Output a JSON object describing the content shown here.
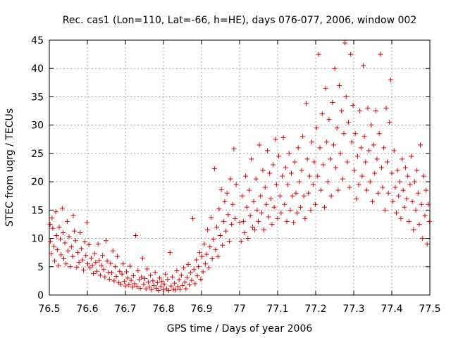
{
  "chart_data": {
    "type": "scatter",
    "title": "Rec. cas1 (Lon=110, Lat=-66, h=HE), days 076-077, 2006, window 002",
    "xlabel": "GPS time / Days of year 2006",
    "ylabel": "STEC from uqrg / TECUs",
    "xlim": [
      76.5,
      77.5
    ],
    "ylim": [
      0,
      45
    ],
    "x_ticks": [
      "76.5",
      "76.6",
      "76.7",
      "76.8",
      "76.9",
      "77",
      "77.1",
      "77.2",
      "77.3",
      "77.4",
      "77.5"
    ],
    "y_ticks": [
      "0",
      "5",
      "10",
      "15",
      "20",
      "25",
      "30",
      "35",
      "40",
      "45"
    ],
    "grid": true,
    "marker": "plus",
    "color": "#dd0000",
    "points": [
      [
        76.502,
        12.5
      ],
      [
        76.503,
        9.5
      ],
      [
        76.505,
        7.3
      ],
      [
        76.507,
        13.6
      ],
      [
        76.509,
        11.8
      ],
      [
        76.512,
        8.6
      ],
      [
        76.514,
        6.0
      ],
      [
        76.517,
        14.7
      ],
      [
        76.519,
        10.5
      ],
      [
        76.521,
        8.0
      ],
      [
        76.524,
        5.2
      ],
      [
        76.526,
        12.0
      ],
      [
        76.529,
        9.9
      ],
      [
        76.531,
        7.1
      ],
      [
        76.534,
        15.3
      ],
      [
        76.536,
        11.0
      ],
      [
        76.538,
        6.4
      ],
      [
        76.541,
        9.2
      ],
      [
        76.544,
        5.5
      ],
      [
        76.547,
        13.0
      ],
      [
        76.549,
        7.8
      ],
      [
        76.552,
        10.3
      ],
      [
        76.555,
        5.0
      ],
      [
        76.558,
        8.5
      ],
      [
        76.561,
        6.8
      ],
      [
        76.563,
        14.0
      ],
      [
        76.566,
        11.3
      ],
      [
        76.569,
        9.6
      ],
      [
        76.572,
        4.9
      ],
      [
        76.575,
        7.5
      ],
      [
        76.578,
        5.8
      ],
      [
        76.581,
        11.0
      ],
      [
        76.584,
        8.2
      ],
      [
        76.587,
        6.2
      ],
      [
        76.59,
        4.4
      ],
      [
        76.593,
        9.4
      ],
      [
        76.596,
        7.0
      ],
      [
        76.599,
        12.8
      ],
      [
        76.601,
        5.5
      ],
      [
        76.604,
        8.9
      ],
      [
        76.607,
        4.8
      ],
      [
        76.61,
        6.5
      ],
      [
        76.613,
        5.2
      ],
      [
        76.616,
        3.8
      ],
      [
        76.619,
        7.3
      ],
      [
        76.622,
        5.8
      ],
      [
        76.625,
        4.2
      ],
      [
        76.628,
        9.0
      ],
      [
        76.631,
        6.1
      ],
      [
        76.634,
        3.5
      ],
      [
        76.637,
        5.2
      ],
      [
        76.64,
        7.0
      ],
      [
        76.643,
        4.5
      ],
      [
        76.646,
        3.2
      ],
      [
        76.649,
        9.6
      ],
      [
        76.652,
        6.0
      ],
      [
        76.655,
        4.0
      ],
      [
        76.658,
        2.8
      ],
      [
        76.661,
        5.6
      ],
      [
        76.664,
        3.9
      ],
      [
        76.667,
        7.8
      ],
      [
        76.67,
        2.5
      ],
      [
        76.673,
        5.0
      ],
      [
        76.676,
        3.3
      ],
      [
        76.679,
        6.8
      ],
      [
        76.682,
        2.2
      ],
      [
        76.685,
        4.2
      ],
      [
        76.688,
        1.9
      ],
      [
        76.691,
        3.7
      ],
      [
        76.694,
        5.5
      ],
      [
        76.697,
        2.4
      ],
      [
        76.7,
        1.6
      ],
      [
        76.703,
        4.1
      ],
      [
        76.706,
        3.0
      ],
      [
        76.709,
        1.8
      ],
      [
        76.712,
        5.1
      ],
      [
        76.715,
        2.6
      ],
      [
        76.718,
        1.4
      ],
      [
        76.721,
        3.4
      ],
      [
        76.724,
        2.0
      ],
      [
        76.727,
        10.5
      ],
      [
        76.73,
        1.5
      ],
      [
        76.733,
        4.3
      ],
      [
        76.736,
        2.7
      ],
      [
        76.739,
        1.2
      ],
      [
        76.742,
        3.2
      ],
      [
        76.745,
        6.5
      ],
      [
        76.748,
        1.9
      ],
      [
        76.751,
        2.9
      ],
      [
        76.754,
        1.1
      ],
      [
        76.757,
        4.6
      ],
      [
        76.76,
        2.3
      ],
      [
        76.763,
        1.4
      ],
      [
        76.766,
        3.5
      ],
      [
        76.769,
        0.9
      ],
      [
        76.772,
        2.5
      ],
      [
        76.775,
        1.7
      ],
      [
        76.778,
        4.0
      ],
      [
        76.781,
        1.2
      ],
      [
        76.784,
        2.2
      ],
      [
        76.787,
        0.8
      ],
      [
        76.79,
        3.0
      ],
      [
        76.793,
        1.5
      ],
      [
        76.796,
        2.4
      ],
      [
        76.799,
        0.9
      ],
      [
        76.802,
        1.9
      ],
      [
        76.805,
        3.7
      ],
      [
        76.808,
        1.1
      ],
      [
        76.811,
        2.8
      ],
      [
        76.814,
        0.8
      ],
      [
        76.817,
        7.5
      ],
      [
        76.82,
        1.6
      ],
      [
        76.823,
        3.2
      ],
      [
        76.826,
        1.0
      ],
      [
        76.829,
        2.1
      ],
      [
        76.832,
        0.9
      ],
      [
        76.835,
        4.3
      ],
      [
        76.838,
        1.5
      ],
      [
        76.841,
        2.7
      ],
      [
        76.844,
        1.0
      ],
      [
        76.847,
        3.5
      ],
      [
        76.85,
        1.7
      ],
      [
        76.853,
        4.8
      ],
      [
        76.856,
        2.3
      ],
      [
        76.859,
        1.1
      ],
      [
        76.862,
        3.1
      ],
      [
        76.865,
        5.4
      ],
      [
        76.868,
        1.8
      ],
      [
        76.871,
        3.9
      ],
      [
        76.874,
        2.6
      ],
      [
        76.877,
        13.5
      ],
      [
        76.88,
        4.5
      ],
      [
        76.883,
        2.0
      ],
      [
        76.886,
        6.2
      ],
      [
        76.889,
        3.4
      ],
      [
        76.892,
        5.0
      ],
      [
        76.895,
        7.5
      ],
      [
        76.898,
        2.8
      ],
      [
        76.901,
        6.8
      ],
      [
        76.904,
        4.1
      ],
      [
        76.907,
        9.0
      ],
      [
        76.91,
        5.5
      ],
      [
        76.913,
        7.2
      ],
      [
        76.916,
        11.5
      ],
      [
        76.919,
        4.8
      ],
      [
        76.922,
        8.5
      ],
      [
        76.925,
        13.7
      ],
      [
        76.928,
        6.4
      ],
      [
        76.931,
        9.8
      ],
      [
        76.934,
        22.3
      ],
      [
        76.937,
        8.0
      ],
      [
        76.94,
        12.0
      ],
      [
        76.943,
        6.8
      ],
      [
        76.946,
        15.2
      ],
      [
        76.949,
        10.5
      ],
      [
        76.952,
        18.6
      ],
      [
        76.955,
        8.8
      ],
      [
        76.958,
        13.0
      ],
      [
        76.961,
        16.5
      ],
      [
        76.964,
        11.3
      ],
      [
        76.967,
        18.0
      ],
      [
        76.97,
        14.2
      ],
      [
        76.973,
        9.5
      ],
      [
        76.976,
        20.5
      ],
      [
        76.979,
        12.5
      ],
      [
        76.982,
        16.0
      ],
      [
        76.985,
        25.8
      ],
      [
        76.988,
        13.5
      ],
      [
        76.991,
        19.5
      ],
      [
        77.0,
        12.8
      ],
      [
        77.004,
        9.5
      ],
      [
        77.007,
        17.5
      ],
      [
        77.01,
        13.0
      ],
      [
        77.013,
        11.0
      ],
      [
        77.016,
        21.0
      ],
      [
        77.019,
        15.5
      ],
      [
        77.022,
        10.0
      ],
      [
        77.025,
        18.5
      ],
      [
        77.028,
        14.0
      ],
      [
        77.031,
        24.0
      ],
      [
        77.034,
        12.0
      ],
      [
        77.037,
        16.5
      ],
      [
        77.04,
        11.5
      ],
      [
        77.043,
        20.5
      ],
      [
        77.046,
        15.0
      ],
      [
        77.049,
        13.0
      ],
      [
        77.052,
        26.5
      ],
      [
        77.055,
        17.5
      ],
      [
        77.058,
        14.5
      ],
      [
        77.061,
        22.0
      ],
      [
        77.064,
        11.5
      ],
      [
        77.067,
        19.0
      ],
      [
        77.07,
        16.0
      ],
      [
        77.073,
        25.5
      ],
      [
        77.076,
        13.8
      ],
      [
        77.079,
        21.5
      ],
      [
        77.082,
        17.0
      ],
      [
        77.085,
        12.5
      ],
      [
        77.088,
        23.0
      ],
      [
        77.091,
        15.5
      ],
      [
        77.094,
        27.5
      ],
      [
        77.097,
        19.5
      ],
      [
        77.1,
        13.5
      ],
      [
        77.103,
        24.5
      ],
      [
        77.106,
        17.5
      ],
      [
        77.109,
        14.5
      ],
      [
        77.112,
        21.0
      ],
      [
        77.115,
        27.8
      ],
      [
        77.118,
        16.0
      ],
      [
        77.121,
        22.5
      ],
      [
        77.124,
        13.0
      ],
      [
        77.127,
        19.5
      ],
      [
        77.13,
        25.0
      ],
      [
        77.133,
        15.0
      ],
      [
        77.136,
        21.5
      ],
      [
        77.139,
        17.5
      ],
      [
        77.142,
        12.8
      ],
      [
        77.145,
        23.5
      ],
      [
        77.148,
        18.0
      ],
      [
        77.151,
        14.5
      ],
      [
        77.154,
        26.0
      ],
      [
        77.157,
        20.0
      ],
      [
        77.16,
        15.5
      ],
      [
        77.163,
        22.0
      ],
      [
        77.166,
        28.0
      ],
      [
        77.169,
        17.5
      ],
      [
        77.172,
        13.5
      ],
      [
        77.175,
        33.8
      ],
      [
        77.178,
        24.0
      ],
      [
        77.181,
        18.0
      ],
      [
        77.184,
        21.0
      ],
      [
        77.187,
        15.0
      ],
      [
        77.19,
        27.0
      ],
      [
        77.193,
        19.5
      ],
      [
        77.196,
        23.5
      ],
      [
        77.199,
        16.0
      ],
      [
        77.202,
        29.5
      ],
      [
        77.205,
        21.0
      ],
      [
        77.208,
        42.5
      ],
      [
        77.211,
        26.0
      ],
      [
        77.214,
        18.5
      ],
      [
        77.217,
        32.0
      ],
      [
        77.22,
        23.0
      ],
      [
        77.223,
        15.5
      ],
      [
        77.226,
        36.5
      ],
      [
        77.229,
        27.0
      ],
      [
        77.232,
        20.0
      ],
      [
        77.235,
        31.0
      ],
      [
        77.238,
        24.0
      ],
      [
        77.241,
        17.5
      ],
      [
        77.244,
        34.0
      ],
      [
        77.247,
        26.5
      ],
      [
        77.25,
        40.0
      ],
      [
        77.253,
        22.5
      ],
      [
        77.256,
        29.5
      ],
      [
        77.259,
        18.5
      ],
      [
        77.262,
        37.0
      ],
      [
        77.265,
        25.0
      ],
      [
        77.268,
        32.5
      ],
      [
        77.271,
        20.5
      ],
      [
        77.274,
        28.5
      ],
      [
        77.277,
        44.5
      ],
      [
        77.28,
        35.0
      ],
      [
        77.283,
        23.5
      ],
      [
        77.286,
        30.5
      ],
      [
        77.289,
        19.0
      ],
      [
        77.292,
        42.5
      ],
      [
        77.295,
        27.0
      ],
      [
        77.298,
        33.5
      ],
      [
        77.301,
        22.0
      ],
      [
        77.304,
        28.5
      ],
      [
        77.307,
        17.0
      ],
      [
        77.31,
        24.5
      ],
      [
        77.313,
        19.5
      ],
      [
        77.316,
        32.5
      ],
      [
        77.319,
        26.0
      ],
      [
        77.322,
        21.0
      ],
      [
        77.325,
        40.5
      ],
      [
        77.328,
        28.0
      ],
      [
        77.331,
        23.5
      ],
      [
        77.334,
        18.5
      ],
      [
        77.337,
        33.0
      ],
      [
        77.34,
        25.5
      ],
      [
        77.343,
        20.0
      ],
      [
        77.346,
        30.0
      ],
      [
        77.349,
        16.5
      ],
      [
        77.352,
        26.5
      ],
      [
        77.355,
        21.5
      ],
      [
        77.358,
        32.5
      ],
      [
        77.361,
        24.0
      ],
      [
        77.364,
        18.0
      ],
      [
        77.367,
        28.5
      ],
      [
        77.37,
        42.5
      ],
      [
        77.373,
        22.5
      ],
      [
        77.376,
        19.0
      ],
      [
        77.379,
        26.0
      ],
      [
        77.382,
        15.0
      ],
      [
        77.385,
        33.0
      ],
      [
        77.388,
        23.5
      ],
      [
        77.391,
        18.0
      ],
      [
        77.394,
        30.5
      ],
      [
        77.397,
        38.0
      ],
      [
        77.4,
        21.5
      ],
      [
        77.403,
        16.5
      ],
      [
        77.406,
        25.5
      ],
      [
        77.409,
        19.0
      ],
      [
        77.412,
        14.5
      ],
      [
        77.415,
        22.0
      ],
      [
        77.418,
        17.5
      ],
      [
        77.421,
        20.0
      ],
      [
        77.424,
        13.5
      ],
      [
        77.427,
        24.0
      ],
      [
        77.43,
        18.5
      ],
      [
        77.433,
        15.5
      ],
      [
        77.436,
        22.5
      ],
      [
        77.439,
        17.0
      ],
      [
        77.442,
        21.0
      ],
      [
        77.445,
        13.0
      ],
      [
        77.448,
        19.5
      ],
      [
        77.451,
        24.5
      ],
      [
        77.454,
        16.5
      ],
      [
        77.457,
        11.5
      ],
      [
        77.46,
        20.0
      ],
      [
        77.463,
        15.0
      ],
      [
        77.466,
        22.0
      ],
      [
        77.469,
        18.0
      ],
      [
        77.472,
        12.5
      ],
      [
        77.475,
        26.5
      ],
      [
        77.478,
        16.0
      ],
      [
        77.481,
        10.0
      ],
      [
        77.484,
        21.0
      ],
      [
        77.487,
        14.0
      ],
      [
        77.49,
        18.5
      ],
      [
        77.493,
        9.0
      ],
      [
        77.496,
        16.0
      ],
      [
        77.499,
        13.0
      ]
    ]
  }
}
